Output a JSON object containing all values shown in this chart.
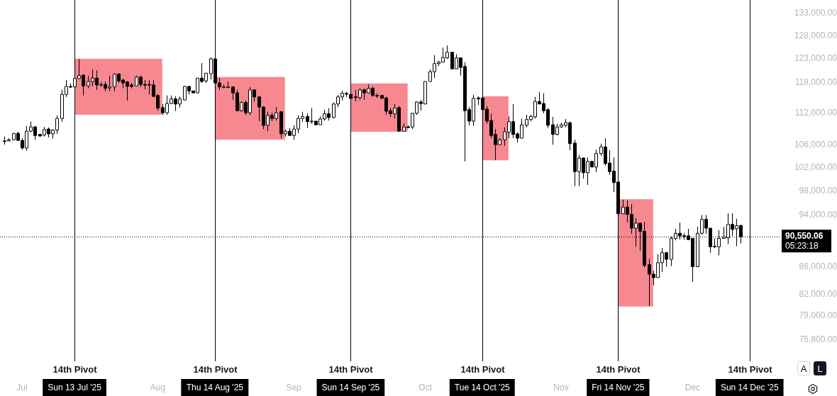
{
  "chart_data": {
    "type": "candlestick",
    "x": [
      "2025-06-27",
      "2025-06-28",
      "2025-06-29",
      "2025-06-30",
      "2025-07-01",
      "2025-07-02",
      "2025-07-03",
      "2025-07-04",
      "2025-07-05",
      "2025-07-06",
      "2025-07-07",
      "2025-07-08",
      "2025-07-09",
      "2025-07-10",
      "2025-07-11",
      "2025-07-12",
      "2025-07-13",
      "2025-07-14",
      "2025-07-15",
      "2025-07-16",
      "2025-07-17",
      "2025-07-18",
      "2025-07-19",
      "2025-07-20",
      "2025-07-21",
      "2025-07-22",
      "2025-07-23",
      "2025-07-24",
      "2025-07-25",
      "2025-07-26",
      "2025-07-27",
      "2025-07-28",
      "2025-07-29",
      "2025-07-30",
      "2025-07-31",
      "2025-08-01",
      "2025-08-02",
      "2025-08-03",
      "2025-08-04",
      "2025-08-05",
      "2025-08-06",
      "2025-08-07",
      "2025-08-08",
      "2025-08-09",
      "2025-08-10",
      "2025-08-11",
      "2025-08-12",
      "2025-08-13",
      "2025-08-14",
      "2025-08-15",
      "2025-08-16",
      "2025-08-17",
      "2025-08-18",
      "2025-08-19",
      "2025-08-20",
      "2025-08-21",
      "2025-08-22",
      "2025-08-23",
      "2025-08-24",
      "2025-08-25",
      "2025-08-26",
      "2025-08-27",
      "2025-08-28",
      "2025-08-29",
      "2025-08-30",
      "2025-08-31",
      "2025-09-01",
      "2025-09-02",
      "2025-09-03",
      "2025-09-04",
      "2025-09-05",
      "2025-09-06",
      "2025-09-07",
      "2025-09-08",
      "2025-09-09",
      "2025-09-10",
      "2025-09-11",
      "2025-09-12",
      "2025-09-13",
      "2025-09-14",
      "2025-09-15",
      "2025-09-16",
      "2025-09-17",
      "2025-09-18",
      "2025-09-19",
      "2025-09-20",
      "2025-09-21",
      "2025-09-22",
      "2025-09-23",
      "2025-09-24",
      "2025-09-25",
      "2025-09-26",
      "2025-09-27",
      "2025-09-28",
      "2025-09-29",
      "2025-09-30",
      "2025-10-01",
      "2025-10-02",
      "2025-10-03",
      "2025-10-04",
      "2025-10-05",
      "2025-10-06",
      "2025-10-07",
      "2025-10-08",
      "2025-10-09",
      "2025-10-10",
      "2025-10-11",
      "2025-10-12",
      "2025-10-13",
      "2025-10-14",
      "2025-10-15",
      "2025-10-16",
      "2025-10-17",
      "2025-10-18",
      "2025-10-19",
      "2025-10-20",
      "2025-10-21",
      "2025-10-22",
      "2025-10-23",
      "2025-10-24",
      "2025-10-25",
      "2025-10-26",
      "2025-10-27",
      "2025-10-28",
      "2025-10-29",
      "2025-10-30",
      "2025-10-31",
      "2025-11-01",
      "2025-11-02",
      "2025-11-03",
      "2025-11-04",
      "2025-11-05",
      "2025-11-06",
      "2025-11-07",
      "2025-11-08",
      "2025-11-09",
      "2025-11-10",
      "2025-11-11",
      "2025-11-12",
      "2025-11-13",
      "2025-11-14",
      "2025-11-15",
      "2025-11-16",
      "2025-11-17",
      "2025-11-18",
      "2025-11-19",
      "2025-11-20",
      "2025-11-21",
      "2025-11-22",
      "2025-11-23",
      "2025-11-24",
      "2025-11-25",
      "2025-11-26",
      "2025-11-27",
      "2025-11-28",
      "2025-11-29",
      "2025-11-30",
      "2025-12-01",
      "2025-12-02",
      "2025-12-03",
      "2025-12-04",
      "2025-12-05",
      "2025-12-06",
      "2025-12-07",
      "2025-12-08",
      "2025-12-09",
      "2025-12-10",
      "2025-12-11",
      "2025-12-12"
    ],
    "ohlc": [
      [
        106800,
        107600,
        106100,
        106700
      ],
      [
        106800,
        107300,
        106800,
        107000
      ],
      [
        107000,
        108200,
        107000,
        108200
      ],
      [
        108200,
        108500,
        106800,
        106900
      ],
      [
        106900,
        107300,
        105200,
        105500
      ],
      [
        105500,
        109600,
        105000,
        108600
      ],
      [
        108600,
        110400,
        108400,
        109400
      ],
      [
        109400,
        109600,
        107000,
        107800
      ],
      [
        108000,
        108100,
        107600,
        107700
      ],
      [
        107900,
        109400,
        107600,
        108900
      ],
      [
        109000,
        109300,
        107400,
        108100
      ],
      [
        108100,
        109000,
        107200,
        108800
      ],
      [
        108800,
        111600,
        108100,
        111000
      ],
      [
        111000,
        116600,
        110400,
        115700
      ],
      [
        115700,
        118600,
        115200,
        117300
      ],
      [
        117300,
        117900,
        117000,
        117200
      ],
      [
        117200,
        118900,
        117200,
        118900
      ],
      [
        118900,
        123000,
        118900,
        119500
      ],
      [
        119600,
        119800,
        115500,
        117400
      ],
      [
        117400,
        119500,
        116900,
        118300
      ],
      [
        118300,
        120800,
        117300,
        119000
      ],
      [
        119000,
        120600,
        116600,
        117600
      ],
      [
        117600,
        118200,
        117200,
        117700
      ],
      [
        117700,
        118300,
        116300,
        116900
      ],
      [
        117000,
        119500,
        116300,
        117200
      ],
      [
        117200,
        120000,
        116300,
        119800
      ],
      [
        119800,
        120000,
        118000,
        118400
      ],
      [
        118600,
        118900,
        116900,
        118000
      ],
      [
        118200,
        118400,
        114500,
        117300
      ],
      [
        117600,
        118000,
        116900,
        117300
      ],
      [
        117400,
        119500,
        117400,
        119200
      ],
      [
        119200,
        119500,
        117200,
        117700
      ],
      [
        117700,
        118600,
        116700,
        117600
      ],
      [
        117700,
        118600,
        115700,
        117600
      ],
      [
        117600,
        118600,
        115200,
        115300
      ],
      [
        115500,
        115700,
        112500,
        113000
      ],
      [
        113100,
        113800,
        111700,
        112100
      ],
      [
        112100,
        115500,
        111700,
        113900
      ],
      [
        113900,
        115500,
        113800,
        114800
      ],
      [
        114800,
        115300,
        112400,
        113800
      ],
      [
        113800,
        115300,
        113100,
        114800
      ],
      [
        114600,
        117400,
        114500,
        117300
      ],
      [
        117300,
        117400,
        115700,
        116400
      ],
      [
        116400,
        116400,
        116000,
        116000
      ],
      [
        116000,
        119000,
        116000,
        119000
      ],
      [
        119000,
        122100,
        118000,
        118300
      ],
      [
        118400,
        120000,
        118000,
        120000
      ],
      [
        119900,
        123300,
        118700,
        123000
      ],
      [
        123000,
        123200,
        118000,
        118000
      ],
      [
        118000,
        119000,
        116600,
        117200
      ],
      [
        117200,
        117700,
        117200,
        117200
      ],
      [
        117200,
        118300,
        117200,
        117200
      ],
      [
        117200,
        117200,
        114600,
        116000
      ],
      [
        116000,
        116600,
        112500,
        112500
      ],
      [
        112500,
        114300,
        112300,
        114100
      ],
      [
        114100,
        114500,
        111700,
        112100
      ],
      [
        112100,
        117200,
        111600,
        116600
      ],
      [
        116600,
        116700,
        114300,
        115200
      ],
      [
        115200,
        115300,
        110500,
        113200
      ],
      [
        113200,
        113400,
        109000,
        109700
      ],
      [
        109700,
        112300,
        108600,
        111600
      ],
      [
        111600,
        112100,
        110500,
        111000
      ],
      [
        111000,
        113200,
        110600,
        112100
      ],
      [
        112300,
        112300,
        107300,
        108100
      ],
      [
        108100,
        108900,
        107600,
        108600
      ],
      [
        108600,
        109200,
        107800,
        107800
      ],
      [
        107800,
        109700,
        107000,
        109000
      ],
      [
        109000,
        111600,
        108200,
        111000
      ],
      [
        111000,
        112300,
        110400,
        111400
      ],
      [
        111400,
        112000,
        109200,
        110400
      ],
      [
        110400,
        113000,
        110000,
        110500
      ],
      [
        110500,
        110500,
        109800,
        109800
      ],
      [
        109800,
        111400,
        109800,
        110900
      ],
      [
        110900,
        112700,
        110600,
        111900
      ],
      [
        111900,
        113000,
        110600,
        111200
      ],
      [
        111200,
        114100,
        111000,
        113800
      ],
      [
        113800,
        115600,
        113200,
        115200
      ],
      [
        115200,
        116400,
        114500,
        115900
      ],
      [
        115900,
        116200,
        115200,
        115800
      ],
      [
        115700,
        115700,
        114900,
        114900
      ],
      [
        115200,
        116600,
        114300,
        115100
      ],
      [
        115100,
        116900,
        114600,
        116600
      ],
      [
        116600,
        116900,
        114600,
        116000
      ],
      [
        116000,
        117700,
        115900,
        116900
      ],
      [
        116900,
        117300,
        115200,
        115500
      ],
      [
        115500,
        115900,
        115000,
        115400
      ],
      [
        115500,
        115500,
        114900,
        114900
      ],
      [
        115000,
        115200,
        111700,
        112400
      ],
      [
        112500,
        113000,
        111300,
        111900
      ],
      [
        111900,
        113800,
        111000,
        113000
      ],
      [
        113100,
        113400,
        108600,
        108600
      ],
      [
        108600,
        110100,
        108500,
        109400
      ],
      [
        109400,
        109700,
        109200,
        109300
      ],
      [
        109400,
        112100,
        109000,
        112000
      ],
      [
        112000,
        114300,
        111700,
        114200
      ],
      [
        114200,
        114600,
        112500,
        113900
      ],
      [
        113800,
        118300,
        113800,
        118300
      ],
      [
        118300,
        120800,
        118300,
        120300
      ],
      [
        120300,
        123800,
        119000,
        122000
      ],
      [
        122000,
        122600,
        121500,
        122300
      ],
      [
        122300,
        125400,
        122300,
        123300
      ],
      [
        123200,
        125900,
        123000,
        124400
      ],
      [
        124400,
        124400,
        120900,
        120900
      ],
      [
        120900,
        124000,
        120900,
        123200
      ],
      [
        123200,
        123300,
        119500,
        121200
      ],
      [
        121400,
        122300,
        103100,
        112500
      ],
      [
        112700,
        113200,
        109700,
        110500
      ],
      [
        110500,
        115600,
        109600,
        114900
      ],
      [
        115000,
        115300,
        113600,
        114800
      ],
      [
        115000,
        115000,
        112700,
        112700
      ],
      [
        112800,
        113400,
        110000,
        110500
      ],
      [
        110600,
        111900,
        107300,
        107800
      ],
      [
        108000,
        109000,
        103300,
        106100
      ],
      [
        106100,
        107300,
        106100,
        107000
      ],
      [
        107000,
        109300,
        105900,
        108500
      ],
      [
        108400,
        111400,
        107300,
        110400
      ],
      [
        110400,
        113800,
        107300,
        108000
      ],
      [
        108100,
        108400,
        106500,
        107300
      ],
      [
        107300,
        111000,
        107300,
        109800
      ],
      [
        109700,
        111700,
        109300,
        110800
      ],
      [
        110800,
        111700,
        110500,
        111400
      ],
      [
        111300,
        115200,
        111000,
        114300
      ],
      [
        114300,
        116200,
        113800,
        113800
      ],
      [
        113900,
        115900,
        112000,
        112500
      ],
      [
        112700,
        113000,
        109200,
        109700
      ],
      [
        109800,
        111300,
        106100,
        108000
      ],
      [
        108000,
        110000,
        107800,
        109400
      ],
      [
        109400,
        110200,
        109200,
        109800
      ],
      [
        109700,
        110900,
        109300,
        110200
      ],
      [
        110200,
        110400,
        105100,
        106300
      ],
      [
        106400,
        107000,
        98800,
        101300
      ],
      [
        101300,
        104300,
        98800,
        103700
      ],
      [
        103700,
        103800,
        100100,
        101100
      ],
      [
        101100,
        103800,
        99000,
        103100
      ],
      [
        103100,
        103100,
        102100,
        102100
      ],
      [
        102100,
        105200,
        101200,
        104500
      ],
      [
        104500,
        106300,
        104100,
        105700
      ],
      [
        105700,
        107300,
        102400,
        102700
      ],
      [
        102800,
        105100,
        100700,
        101300
      ],
      [
        101400,
        103800,
        97800,
        99400
      ],
      [
        99500,
        99500,
        94200,
        94200
      ],
      [
        94200,
        96500,
        94200,
        95300
      ],
      [
        95300,
        96400,
        92800,
        94100
      ],
      [
        94100,
        95800,
        91000,
        91900
      ],
      [
        91900,
        93500,
        89000,
        92700
      ],
      [
        92700,
        92800,
        88400,
        91400
      ],
      [
        91400,
        92900,
        85900,
        86200
      ],
      [
        86300,
        87200,
        80400,
        84900
      ],
      [
        84900,
        85400,
        83300,
        84400
      ],
      [
        84400,
        87900,
        84400,
        86600
      ],
      [
        86600,
        88800,
        85200,
        88100
      ],
      [
        88100,
        88200,
        86000,
        87100
      ],
      [
        87100,
        90600,
        86100,
        90300
      ],
      [
        90300,
        91800,
        90000,
        91100
      ],
      [
        91100,
        92800,
        90100,
        90700
      ],
      [
        90700,
        91100,
        90100,
        90600
      ],
      [
        90700,
        91800,
        90100,
        90100
      ],
      [
        90300,
        90300,
        83800,
        86000
      ],
      [
        86000,
        92100,
        86000,
        91100
      ],
      [
        91100,
        94000,
        90900,
        93300
      ],
      [
        93300,
        94000,
        91000,
        91900
      ],
      [
        91900,
        91900,
        88100,
        89000
      ],
      [
        89000,
        90300,
        88800,
        89100
      ],
      [
        89000,
        91600,
        87700,
        90300
      ],
      [
        90300,
        92100,
        90300,
        90500
      ],
      [
        90400,
        94300,
        89400,
        92500
      ],
      [
        92500,
        94300,
        90700,
        91700
      ],
      [
        91800,
        93400,
        89100,
        92300
      ],
      [
        92300,
        92500,
        89500,
        90550
      ]
    ],
    "xlim": [
      "2025-06-26",
      "2025-12-21"
    ],
    "xticks": [
      {
        "value": "2025-07-01",
        "label": "Jul"
      },
      {
        "value": "2025-07-13",
        "label": "Sun 13 Jul '25"
      },
      {
        "value": "2025-08-01",
        "label": "Aug"
      },
      {
        "value": "2025-08-14",
        "label": "Thu 14 Aug '25"
      },
      {
        "value": "2025-09-01",
        "label": "Sep"
      },
      {
        "value": "2025-09-14",
        "label": "Sun 14 Sep '25"
      },
      {
        "value": "2025-10-01",
        "label": "Oct"
      },
      {
        "value": "2025-10-14",
        "label": "Tue 14 Oct '25"
      },
      {
        "value": "2025-11-01",
        "label": "Nov"
      },
      {
        "value": "2025-11-14",
        "label": "Fri 14 Nov '25"
      },
      {
        "value": "2025-12-01",
        "label": "Dec"
      },
      {
        "value": "2025-12-14",
        "label": "Sun 14 Dec '25"
      }
    ],
    "ylim": [
      75800,
      133000
    ],
    "yticks": [
      {
        "value": 75800,
        "label": "75,800.00"
      },
      {
        "value": 79000,
        "label": "79,000.00"
      },
      {
        "value": 82000,
        "label": "82,000.00"
      },
      {
        "value": 86000,
        "label": "86,000.00"
      },
      {
        "value": 94000,
        "label": "94,000.00"
      },
      {
        "value": 98000,
        "label": "98,000.00"
      },
      {
        "value": 102000,
        "label": "102,000.00"
      },
      {
        "value": 106000,
        "label": "106,000.00"
      },
      {
        "value": 112000,
        "label": "112,000.00"
      },
      {
        "value": 118000,
        "label": "118,000.00"
      },
      {
        "value": 123000,
        "label": "123,000.00"
      },
      {
        "value": 128000,
        "label": "128,000.00"
      },
      {
        "value": 133000,
        "label": "133,000.00"
      }
    ],
    "log": true,
    "grid": false,
    "ref_lines": [
      {
        "axis": "x",
        "value": "2025-07-13",
        "label": "14th Pivot",
        "color": "#000000"
      },
      {
        "axis": "x",
        "value": "2025-08-14",
        "label": "14th Pivot",
        "color": "#000000"
      },
      {
        "axis": "x",
        "value": "2025-09-14",
        "label": "14th Pivot",
        "color": "#000000"
      },
      {
        "axis": "x",
        "value": "2025-10-14",
        "label": "14th Pivot",
        "color": "#000000"
      },
      {
        "axis": "x",
        "value": "2025-11-14",
        "label": "14th Pivot",
        "color": "#000000"
      },
      {
        "axis": "x",
        "value": "2025-12-14",
        "label": "14th Pivot",
        "color": "#000000"
      },
      {
        "axis": "y",
        "value": 90550.06,
        "label": "90,550.06",
        "color": "#000000",
        "line_style": "dotted"
      }
    ],
    "series": [
      {
        "type": "bar",
        "color": "#f7888f",
        "x": [
          "2025-07-23",
          "2025-08-22",
          "2025-09-20T12:00",
          "2025-10-17",
          "2025-11-18"
        ],
        "base": [
          111700,
          107000,
          108500,
          103300,
          80300
        ],
        "values": [
          11300,
          12200,
          9400,
          12000,
          16300
        ]
      }
    ],
    "annotations": [
      "05:23:18",
      "A",
      "L"
    ]
  }
}
